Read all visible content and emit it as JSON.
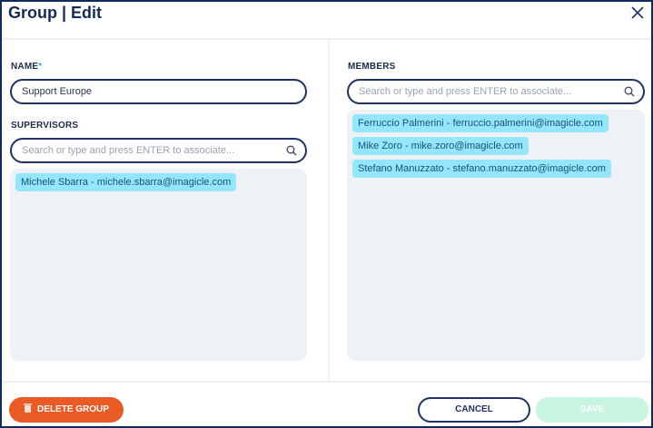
{
  "header": {
    "title": "Group | Edit"
  },
  "name": {
    "label": "NAME",
    "required_mark": "*",
    "value": "Support Europe"
  },
  "supervisors": {
    "label": "SUPERVISORS",
    "search_placeholder": "Search or type and press ENTER to associate...",
    "items": [
      "Michele Sbarra - michele.sbarra@imagicle.com"
    ]
  },
  "members": {
    "label": "MEMBERS",
    "search_placeholder": "Search or type and press ENTER to associate...",
    "items": [
      "Ferruccio Palmerini - ferruccio.palmerini@imagicle.com",
      "Mike Zoro - mike.zoro@imagicle.com",
      "Stefano Manuzzato - stefano.manuzzato@imagicle.com"
    ]
  },
  "footer": {
    "delete_label": "DELETE GROUP",
    "cancel_label": "CANCEL",
    "save_label": "SAVE"
  },
  "colors": {
    "navy": "#1f3464",
    "chip": "#94e7fb",
    "delete": "#ea5a24",
    "save_disabled": "#c8f4e2"
  }
}
